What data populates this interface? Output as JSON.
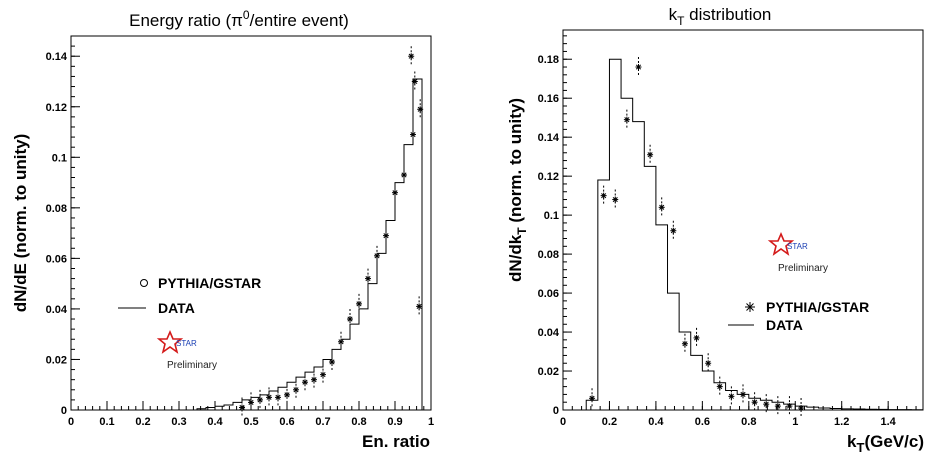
{
  "chart_data": [
    {
      "type": "histogram",
      "title_main": "Energy ratio (π",
      "title_sup": "0",
      "title_rest": "/entire event)",
      "xlabel": "En. ratio",
      "ylabel": "dN/dE (norm. to unity)",
      "xlim": [
        0,
        1
      ],
      "ylim": [
        0,
        0.148
      ],
      "xticks": [
        "0",
        "0.1",
        "0.2",
        "0.3",
        "0.4",
        "0.5",
        "0.6",
        "0.7",
        "0.8",
        "0.9",
        "1"
      ],
      "yticks": [
        "0",
        "0.02",
        "0.04",
        "0.06",
        "0.08",
        "0.1",
        "0.12",
        "0.14"
      ],
      "legend": [
        {
          "marker": "circle",
          "label": "PYTHIA/GSTAR"
        },
        {
          "marker": "line",
          "label": "DATA"
        }
      ],
      "badge": {
        "star": "STAR",
        "text": "Preliminary"
      },
      "data_histogram": {
        "bin_width": 0.025,
        "bin_starts": [
          0.35,
          0.375,
          0.4,
          0.425,
          0.45,
          0.475,
          0.5,
          0.525,
          0.55,
          0.575,
          0.6,
          0.625,
          0.65,
          0.675,
          0.7,
          0.725,
          0.75,
          0.775,
          0.8,
          0.825,
          0.85,
          0.875,
          0.9,
          0.925,
          0.95,
          0.975
        ],
        "values": [
          0.0005,
          0.001,
          0.0015,
          0.002,
          0.003,
          0.004,
          0.005,
          0.006,
          0.0075,
          0.009,
          0.011,
          0.013,
          0.015,
          0.017,
          0.02,
          0.024,
          0.028,
          0.034,
          0.04,
          0.05,
          0.062,
          0.075,
          0.09,
          0.105,
          0.131,
          0.0
        ]
      },
      "pythia_points": {
        "x": [
          0.475,
          0.5,
          0.525,
          0.55,
          0.575,
          0.6,
          0.625,
          0.65,
          0.675,
          0.7,
          0.725,
          0.75,
          0.775,
          0.8,
          0.825,
          0.85,
          0.875,
          0.9,
          0.925,
          0.95,
          0.97
        ],
        "y": [
          0.001,
          0.003,
          0.004,
          0.005,
          0.005,
          0.006,
          0.008,
          0.011,
          0.012,
          0.014,
          0.019,
          0.027,
          0.036,
          0.042,
          0.052,
          0.061,
          0.069,
          0.086,
          0.093,
          0.109,
          0.119
        ]
      },
      "pythia_points_extra": {
        "x": [
          0.945,
          0.955,
          0.967
        ],
        "y": [
          0.14,
          0.13,
          0.041
        ]
      }
    },
    {
      "type": "histogram",
      "title_main": "k",
      "title_sub": "T",
      "title_rest": " distribution",
      "xlabel_main": "k",
      "xlabel_sub": "T",
      "xlabel_rest": "(GeV/c)",
      "ylabel_main": "dN/dk",
      "ylabel_sub": "T",
      "ylabel_rest": " (norm. to unity)",
      "xlim": [
        0,
        1.55
      ],
      "ylim": [
        0,
        0.195
      ],
      "xticks": [
        "0",
        "0.2",
        "0.4",
        "0.6",
        "0.8",
        "1",
        "1.2",
        "1.4"
      ],
      "yticks": [
        "0",
        "0.02",
        "0.04",
        "0.06",
        "0.08",
        "0.1",
        "0.12",
        "0.14",
        "0.16",
        "0.18"
      ],
      "legend": [
        {
          "marker": "asterisk",
          "label": "PYTHIA/GSTAR"
        },
        {
          "marker": "line",
          "label": "DATA"
        }
      ],
      "badge": {
        "star": "STAR",
        "text": "Preliminary"
      },
      "data_histogram": {
        "bin_width": 0.05,
        "bin_starts": [
          0.1,
          0.15,
          0.2,
          0.25,
          0.3,
          0.35,
          0.4,
          0.45,
          0.5,
          0.55,
          0.6,
          0.65,
          0.7,
          0.75,
          0.8,
          0.85,
          0.9,
          0.95,
          1.0,
          1.05,
          1.1,
          1.15,
          1.2,
          1.25,
          1.3,
          1.35,
          1.4,
          1.45,
          1.5
        ],
        "values": [
          0.005,
          0.118,
          0.18,
          0.16,
          0.148,
          0.125,
          0.095,
          0.06,
          0.04,
          0.028,
          0.02,
          0.014,
          0.01,
          0.008,
          0.006,
          0.005,
          0.004,
          0.003,
          0.002,
          0.0015,
          0.001,
          0.0008,
          0.0006,
          0.0005,
          0.0004,
          0.0003,
          0.0002,
          0.0002,
          0.0001
        ]
      },
      "pythia_points": {
        "x": [
          0.125,
          0.175,
          0.225,
          0.275,
          0.325,
          0.375,
          0.425,
          0.475,
          0.525,
          0.575,
          0.625,
          0.675,
          0.725,
          0.775,
          0.825,
          0.875,
          0.925,
          0.975,
          1.025
        ],
        "y": [
          0.006,
          0.11,
          0.108,
          0.149,
          0.176,
          0.131,
          0.104,
          0.092,
          0.034,
          0.037,
          0.024,
          0.012,
          0.007,
          0.008,
          0.004,
          0.003,
          0.002,
          0.002,
          0.001
        ]
      }
    }
  ]
}
